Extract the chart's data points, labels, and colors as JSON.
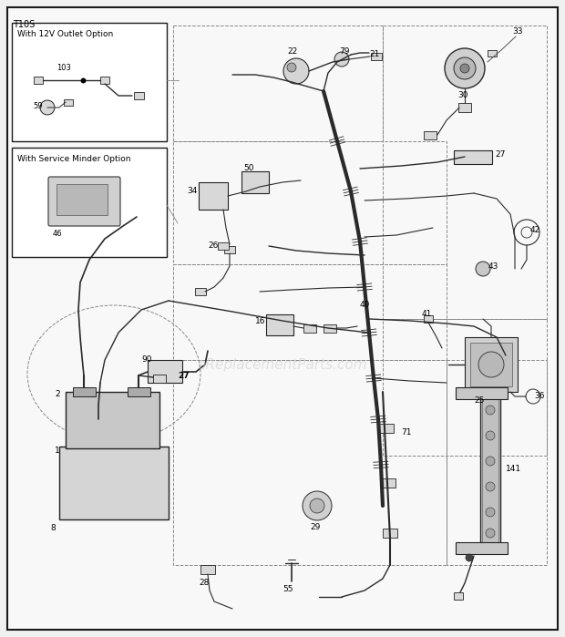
{
  "title": "T10S",
  "bg_color": "#f5f5f5",
  "border_color": "#1a1a1a",
  "diagram_color": "#2a2a2a",
  "dashed_color": "#999999",
  "watermark": "eReplacementParts.com",
  "watermark_color": "#c8c8c8",
  "inset_box1_title": "With 12V Outlet Option",
  "inset_box2_title": "With Service Minder Option"
}
